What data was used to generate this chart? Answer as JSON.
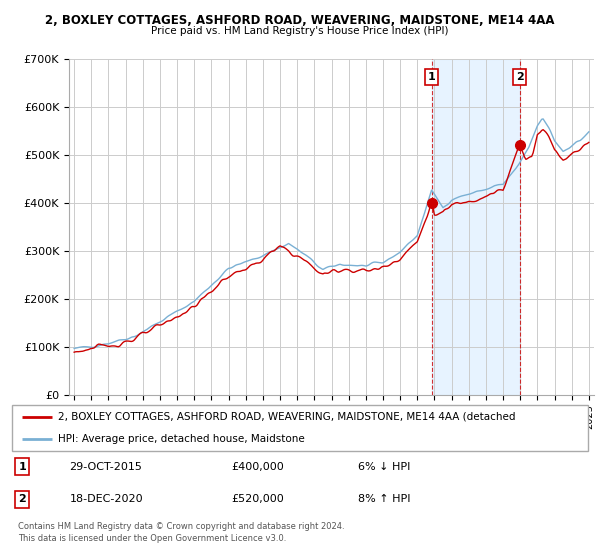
{
  "title": "2, BOXLEY COTTAGES, ASHFORD ROAD, WEAVERING, MAIDSTONE, ME14 4AA",
  "subtitle": "Price paid vs. HM Land Registry's House Price Index (HPI)",
  "legend_line1": "2, BOXLEY COTTAGES, ASHFORD ROAD, WEAVERING, MAIDSTONE, ME14 4AA (detached",
  "legend_line2": "HPI: Average price, detached house, Maidstone",
  "footer1": "Contains HM Land Registry data © Crown copyright and database right 2024.",
  "footer2": "This data is licensed under the Open Government Licence v3.0.",
  "sale1_label": "1",
  "sale1_date": "29-OCT-2015",
  "sale1_price": "£400,000",
  "sale1_hpi": "6% ↓ HPI",
  "sale2_label": "2",
  "sale2_date": "18-DEC-2020",
  "sale2_price": "£520,000",
  "sale2_hpi": "8% ↑ HPI",
  "red_color": "#cc0000",
  "blue_color": "#7ab0d4",
  "sale_marker_color": "#cc0000",
  "grid_color": "#cccccc",
  "background_color": "#ffffff",
  "plot_bg_color": "#ffffff",
  "shade_color": "#ddeeff",
  "ylim": [
    0,
    700000
  ],
  "yticks": [
    0,
    100000,
    200000,
    300000,
    400000,
    500000,
    600000,
    700000
  ],
  "ytick_labels": [
    "£0",
    "£100K",
    "£200K",
    "£300K",
    "£400K",
    "£500K",
    "£600K",
    "£700K"
  ],
  "sale1_x": 2015.83,
  "sale1_y": 400000,
  "sale2_x": 2020.96,
  "sale2_y": 520000,
  "vline1_x": 2015.83,
  "vline2_x": 2020.96,
  "xlim_start": 1994.7,
  "xlim_end": 2025.3
}
